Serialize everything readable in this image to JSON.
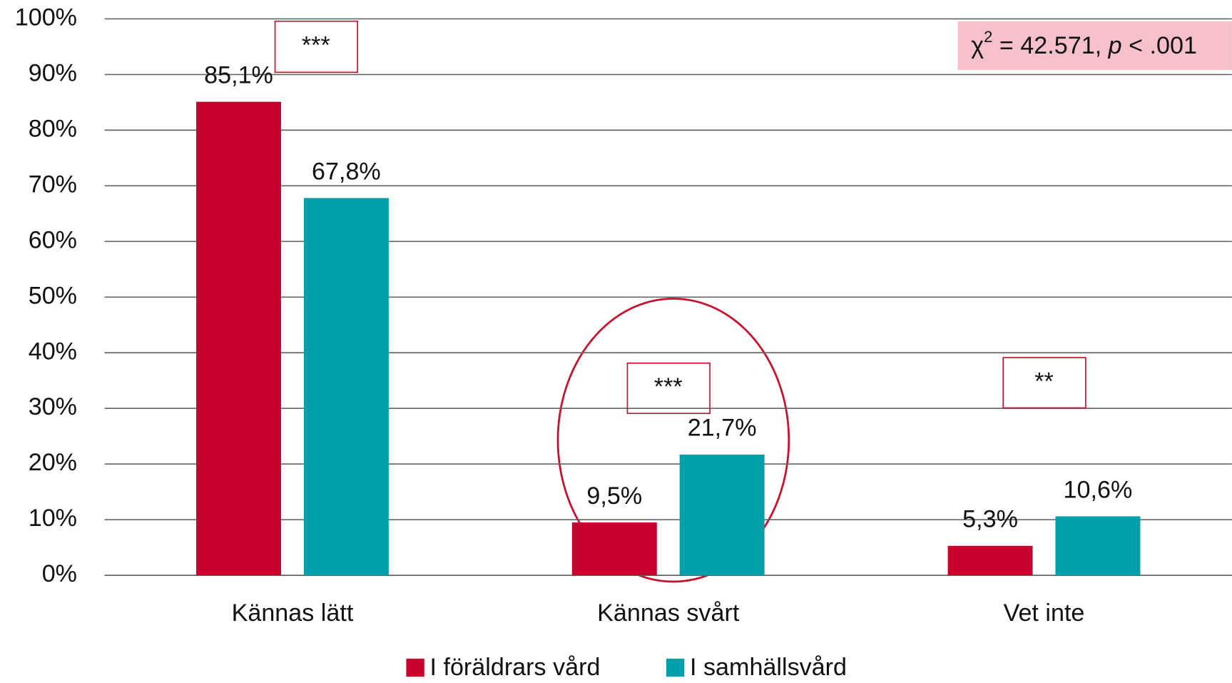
{
  "chart_data": {
    "type": "bar",
    "categories": [
      "Kännas lätt",
      "Kännas svårt",
      "Vet inte"
    ],
    "series": [
      {
        "name": "I föräldrars vård",
        "color": "#c8002e",
        "values": [
          85.1,
          9.5,
          5.3
        ],
        "value_labels": [
          "85,1%",
          "9,5%",
          "5,3%"
        ]
      },
      {
        "name": "I samhällsvård",
        "color": "#009faa",
        "values": [
          67.8,
          21.7,
          10.6
        ],
        "value_labels": [
          "67,8%",
          "21,7%",
          "10,6%"
        ]
      }
    ],
    "ylim": [
      0,
      100
    ],
    "yticks": [
      {
        "value": 0,
        "label": "0%"
      },
      {
        "value": 10,
        "label": "10%"
      },
      {
        "value": 20,
        "label": "20%"
      },
      {
        "value": 30,
        "label": "30%"
      },
      {
        "value": 40,
        "label": "40%"
      },
      {
        "value": 50,
        "label": "50%"
      },
      {
        "value": 60,
        "label": "60%"
      },
      {
        "value": 70,
        "label": "70%"
      },
      {
        "value": 80,
        "label": "80%"
      },
      {
        "value": 90,
        "label": "90%"
      },
      {
        "value": 100,
        "label": "100%"
      }
    ],
    "grid": true,
    "legend": "bottom",
    "significance": [
      "***",
      "***",
      "**"
    ],
    "stat": {
      "symbol": "χ",
      "superscript": "2",
      "value_text": " = 42.571, ",
      "p": "p",
      "p_text": " < .001"
    }
  }
}
